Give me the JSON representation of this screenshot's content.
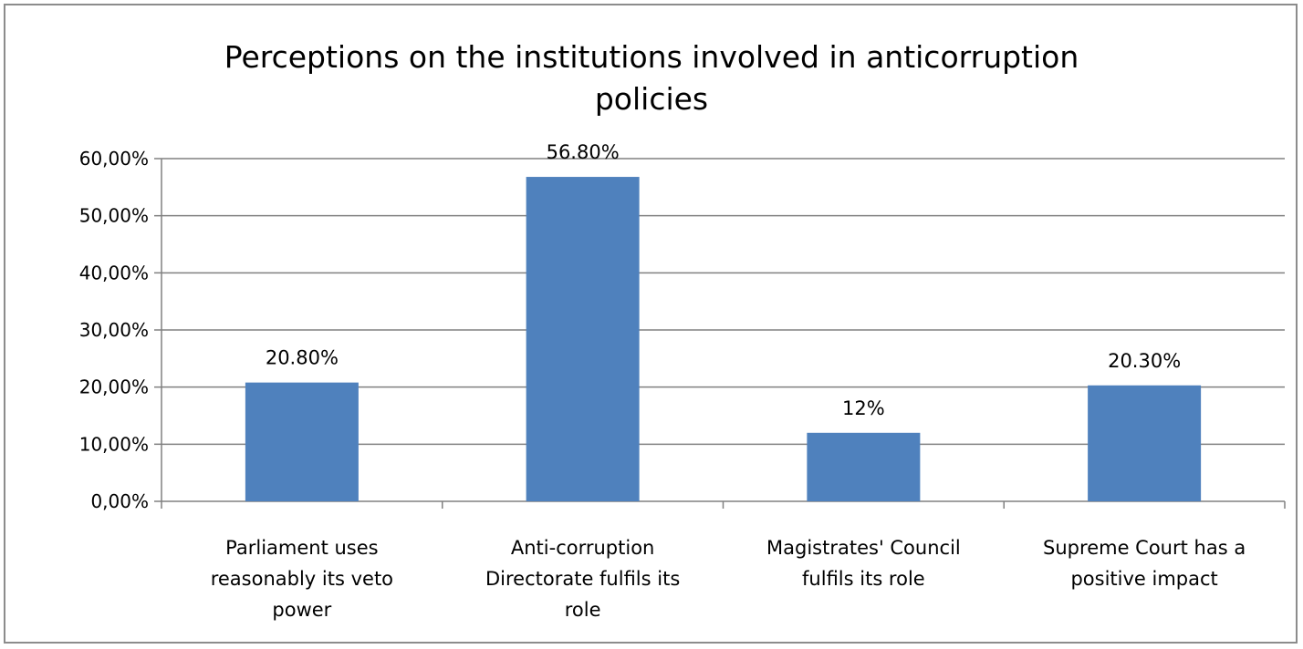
{
  "chart_data": {
    "type": "bar",
    "title_lines": [
      "Perceptions on the institutions involved in anticorruption",
      "policies"
    ],
    "categories": [
      [
        "Parliament uses",
        "reasonably its veto",
        "power"
      ],
      [
        "Anti-corruption",
        "Directorate fulfils its",
        "role"
      ],
      [
        "Magistrates' Council",
        "fulfils its role"
      ],
      [
        "Supreme Court has a",
        "positive impact"
      ]
    ],
    "values": [
      20.8,
      56.8,
      12.0,
      20.3
    ],
    "data_labels": [
      "20.80%",
      "56.80%",
      "12%",
      "20.30%"
    ],
    "ylim": [
      0,
      60
    ],
    "yticks": [
      0,
      10,
      20,
      30,
      40,
      50,
      60
    ],
    "ytick_labels": [
      "0,00%",
      "10,00%",
      "20,00%",
      "30,00%",
      "40,00%",
      "50,00%",
      "60,00%"
    ],
    "grid": true,
    "legend": "none",
    "bar_color": "#4f81bd",
    "grid_color": "#808080"
  }
}
